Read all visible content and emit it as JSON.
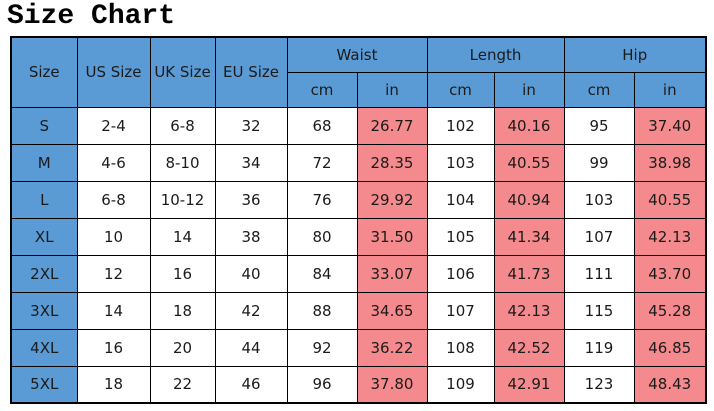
{
  "title": "Size Chart",
  "colors": {
    "header_blue": "#5B9BD5",
    "highlight_pink": "#F48A8D",
    "border": "#000000",
    "text": "#1B1B1B",
    "background": "#FFFFFF"
  },
  "chart_data": {
    "type": "table",
    "title": "Size Chart",
    "single_headers": [
      "Size",
      "US Size",
      "UK Size",
      "EU Size"
    ],
    "group_headers": [
      "Waist",
      "Length",
      "Hip"
    ],
    "sub_headers": [
      "cm",
      "in"
    ],
    "columns": [
      "Size",
      "US Size",
      "UK Size",
      "EU Size",
      "Waist cm",
      "Waist in",
      "Length cm",
      "Length in",
      "Hip cm",
      "Hip in"
    ],
    "rows": [
      [
        "S",
        "2-4",
        "6-8",
        "32",
        "68",
        "26.77",
        "102",
        "40.16",
        "95",
        "37.40"
      ],
      [
        "M",
        "4-6",
        "8-10",
        "34",
        "72",
        "28.35",
        "103",
        "40.55",
        "99",
        "38.98"
      ],
      [
        "L",
        "6-8",
        "10-12",
        "36",
        "76",
        "29.92",
        "104",
        "40.94",
        "103",
        "40.55"
      ],
      [
        "XL",
        "10",
        "14",
        "38",
        "80",
        "31.50",
        "105",
        "41.34",
        "107",
        "42.13"
      ],
      [
        "2XL",
        "12",
        "16",
        "40",
        "84",
        "33.07",
        "106",
        "41.73",
        "111",
        "43.70"
      ],
      [
        "3XL",
        "14",
        "18",
        "42",
        "88",
        "34.65",
        "107",
        "42.13",
        "115",
        "45.28"
      ],
      [
        "4XL",
        "16",
        "20",
        "44",
        "92",
        "36.22",
        "108",
        "42.52",
        "119",
        "46.85"
      ],
      [
        "5XL",
        "18",
        "22",
        "46",
        "96",
        "37.80",
        "109",
        "42.91",
        "123",
        "48.43"
      ]
    ]
  }
}
